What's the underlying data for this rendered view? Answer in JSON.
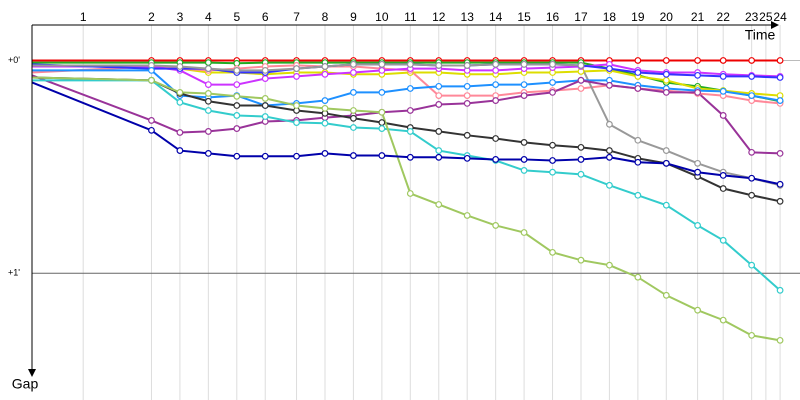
{
  "chart_data": {
    "type": "line",
    "xlabel": "Time",
    "ylabel": "Gap",
    "xlim": [
      0,
      270
    ],
    "ylim": [
      -10,
      96
    ],
    "xticks": [
      {
        "value": 18,
        "label": "1"
      },
      {
        "value": 42,
        "label": "2"
      },
      {
        "value": 52,
        "label": "3"
      },
      {
        "value": 62,
        "label": "4"
      },
      {
        "value": 72,
        "label": "5"
      },
      {
        "value": 82,
        "label": "6"
      },
      {
        "value": 93,
        "label": "7"
      },
      {
        "value": 103,
        "label": "8"
      },
      {
        "value": 113,
        "label": "9"
      },
      {
        "value": 123,
        "label": "10"
      },
      {
        "value": 133,
        "label": "11"
      },
      {
        "value": 143,
        "label": "12"
      },
      {
        "value": 153,
        "label": "13"
      },
      {
        "value": 163,
        "label": "14"
      },
      {
        "value": 173,
        "label": "15"
      },
      {
        "value": 183,
        "label": "16"
      },
      {
        "value": 193,
        "label": "17"
      },
      {
        "value": 203,
        "label": "18"
      },
      {
        "value": 213,
        "label": "19"
      },
      {
        "value": 223,
        "label": "20"
      },
      {
        "value": 234,
        "label": "21"
      },
      {
        "value": 243,
        "label": "22"
      },
      {
        "value": 253,
        "label": "23"
      },
      {
        "value": 258,
        "label": "25"
      },
      {
        "value": 263,
        "label": "24"
      }
    ],
    "yticks": [
      {
        "value": 0,
        "label": "+0'"
      },
      {
        "value": 60,
        "label": "+1'"
      }
    ],
    "grid": true,
    "x": [
      0,
      42,
      52,
      62,
      72,
      82,
      93,
      103,
      113,
      123,
      133,
      143,
      153,
      163,
      173,
      183,
      193,
      203,
      213,
      223,
      234,
      243,
      253,
      263
    ],
    "series": [
      {
        "color": "#ee0000",
        "values": [
          0,
          0,
          0,
          0,
          0,
          0,
          0,
          0,
          0,
          0,
          0,
          0,
          0,
          0,
          0,
          0,
          0,
          0,
          0,
          0,
          0,
          0,
          0,
          0
        ]
      },
      {
        "color": "#22aa22",
        "values": [
          0.6,
          0.6,
          0.6,
          0.6,
          0.8,
          0.6,
          0.6,
          0.6,
          0.6,
          0.6,
          0.6,
          0.6,
          0.6,
          0.6,
          0.6,
          0.6,
          0.6,
          2.3,
          4.2,
          6.2,
          7.3,
          8.5,
          9.9,
          11.5
        ]
      },
      {
        "color": "#dddd00",
        "values": [
          1.7,
          1.7,
          2.3,
          3.4,
          3.4,
          3.9,
          3.4,
          3.4,
          3.9,
          3.9,
          3.4,
          3.4,
          3.9,
          3.9,
          3.4,
          3.4,
          3.1,
          2.8,
          4.5,
          5.6,
          7.9,
          8.5,
          9.3,
          9.9
        ]
      },
      {
        "color": "#ff8899",
        "values": [
          3.4,
          1.7,
          2.3,
          2.8,
          2.3,
          1.7,
          1.4,
          1.7,
          1.7,
          2.3,
          2.8,
          9.9,
          9.9,
          9.9,
          9.0,
          8.5,
          7.9,
          7.0,
          7.9,
          8.5,
          9.3,
          9.9,
          11.3,
          12.1
        ]
      },
      {
        "color": "#cc33ff",
        "values": [
          1.7,
          1.7,
          2.8,
          6.8,
          6.8,
          5.1,
          4.5,
          3.9,
          3.4,
          2.8,
          2.3,
          2.3,
          2.8,
          2.8,
          2.3,
          2.0,
          1.7,
          1.1,
          2.8,
          3.4,
          3.4,
          3.9,
          4.2,
          4.5
        ]
      },
      {
        "color": "#3333ff",
        "values": [
          1.1,
          2.3,
          2.3,
          2.3,
          3.4,
          3.4,
          2.3,
          1.7,
          1.1,
          1.1,
          1.1,
          1.4,
          1.4,
          1.1,
          1.1,
          1.1,
          1.4,
          2.3,
          3.4,
          3.9,
          4.2,
          4.5,
          4.5,
          4.8
        ]
      },
      {
        "color": "#999999",
        "values": [
          1.4,
          1.4,
          1.7,
          2.3,
          2.8,
          2.8,
          2.3,
          1.7,
          1.1,
          1.1,
          1.1,
          1.4,
          1.4,
          1.1,
          1.1,
          1.1,
          1.4,
          18.0,
          22.5,
          25.4,
          29.0,
          31.5,
          33.2,
          35.2
        ]
      },
      {
        "color": "#1e90ff",
        "values": [
          2.8,
          2.8,
          9.9,
          10.4,
          9.9,
          12.7,
          12.1,
          11.3,
          9.0,
          9.0,
          7.9,
          7.3,
          7.3,
          6.8,
          6.8,
          6.2,
          5.6,
          5.6,
          7.0,
          7.9,
          8.5,
          8.7,
          9.9,
          11.3
        ]
      },
      {
        "color": "#993399",
        "values": [
          4.2,
          16.9,
          20.3,
          20.0,
          19.2,
          17.2,
          16.9,
          16.1,
          15.5,
          14.6,
          14.1,
          12.4,
          12.1,
          11.3,
          9.9,
          9.0,
          5.6,
          7.0,
          7.9,
          9.0,
          9.0,
          15.5,
          25.9,
          26.2
        ]
      },
      {
        "color": "#333333",
        "values": [
          4.8,
          5.6,
          9.3,
          11.5,
          12.7,
          12.7,
          14.1,
          14.9,
          16.3,
          17.5,
          18.9,
          20.0,
          21.1,
          22.0,
          23.1,
          23.9,
          24.5,
          25.4,
          27.6,
          29.0,
          32.7,
          36.1,
          38.0,
          39.7
        ]
      },
      {
        "color": "#33cccc",
        "values": [
          5.6,
          5.6,
          11.8,
          14.1,
          15.5,
          15.8,
          17.5,
          17.7,
          18.9,
          19.2,
          20.0,
          25.4,
          26.8,
          28.2,
          31.0,
          31.5,
          32.1,
          35.2,
          38.0,
          40.8,
          46.5,
          50.7,
          57.7,
          64.8
        ]
      },
      {
        "color": "#a0c860",
        "values": [
          4.8,
          5.6,
          9.0,
          9.3,
          10.1,
          10.7,
          12.7,
          13.5,
          14.1,
          14.6,
          37.5,
          40.6,
          43.7,
          46.5,
          48.5,
          54.1,
          56.3,
          57.7,
          61.1,
          66.2,
          70.4,
          73.2,
          77.5,
          78.9
        ]
      },
      {
        "color": "#0000aa",
        "values": [
          6.2,
          19.7,
          25.4,
          26.2,
          27.0,
          27.0,
          27.0,
          26.2,
          26.8,
          26.8,
          27.3,
          27.3,
          27.6,
          27.9,
          27.9,
          28.2,
          27.9,
          27.3,
          28.7,
          29.0,
          31.5,
          32.4,
          33.2,
          34.9
        ]
      }
    ]
  }
}
